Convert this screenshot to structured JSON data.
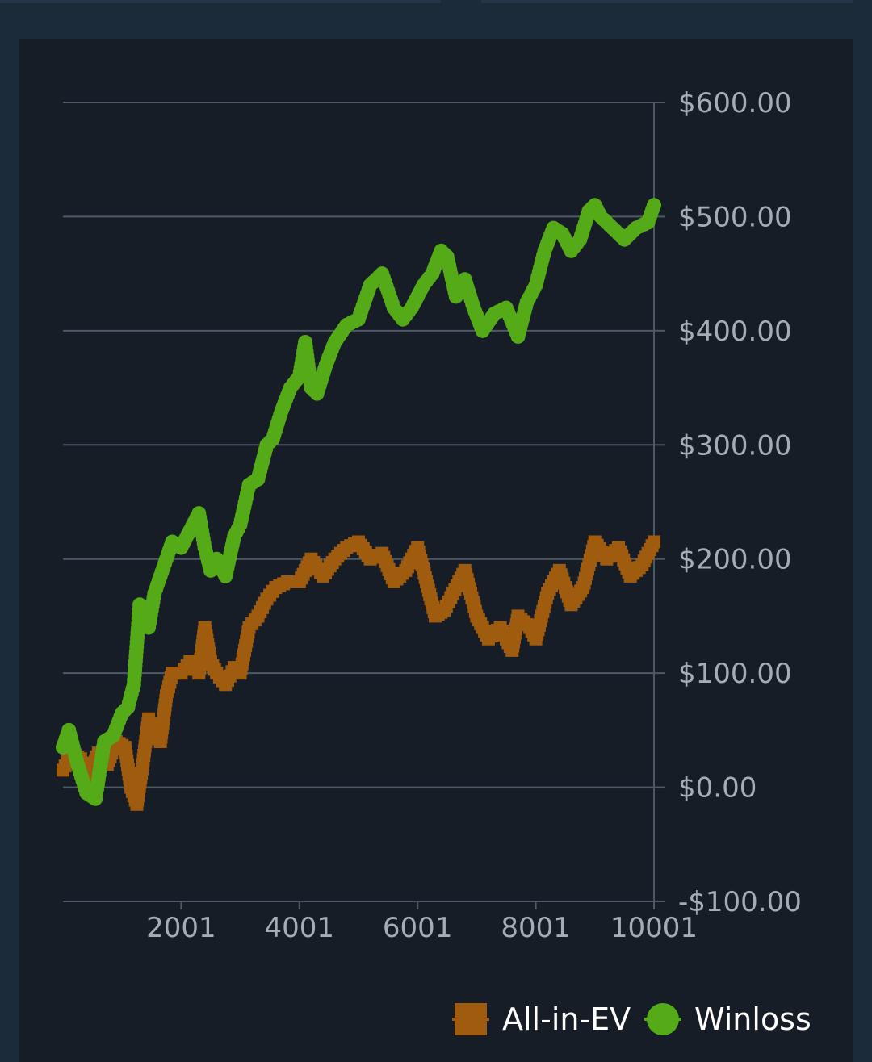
{
  "chart_data": {
    "type": "line",
    "title": "",
    "xlabel": "",
    "ylabel": "",
    "xlim": [
      1,
      10001
    ],
    "ylim": [
      -100,
      600
    ],
    "x_ticks": [
      2001,
      4001,
      6001,
      8001,
      10001
    ],
    "x_tick_labels": [
      "2001",
      "4001",
      "6001",
      "8001",
      "10001"
    ],
    "y_ticks": [
      600,
      500,
      400,
      300,
      200,
      100,
      0,
      -100
    ],
    "y_tick_labels": [
      "$600.00",
      "$500.00",
      "$400.00",
      "$300.00",
      "$200.00",
      "$100.00",
      "$0.00",
      "-$100.00"
    ],
    "grid": true,
    "y_axis_side": "right",
    "legend_position": "bottom-right",
    "series": [
      {
        "name": "All-in-EV",
        "color": "#a05c0e",
        "marker": "square",
        "x": [
          1,
          150,
          300,
          450,
          600,
          750,
          900,
          1050,
          1150,
          1250,
          1350,
          1450,
          1550,
          1650,
          1750,
          1850,
          2001,
          2150,
          2300,
          2400,
          2500,
          2600,
          2750,
          2900,
          3000,
          3150,
          3300,
          3450,
          3600,
          3800,
          4001,
          4200,
          4400,
          4600,
          4800,
          5000,
          5200,
          5400,
          5600,
          5800,
          6001,
          6150,
          6300,
          6450,
          6600,
          6800,
          7000,
          7200,
          7400,
          7600,
          7700,
          7900,
          8001,
          8200,
          8400,
          8600,
          8800,
          9000,
          9200,
          9400,
          9600,
          9800,
          10001
        ],
        "values": [
          15,
          30,
          25,
          10,
          30,
          20,
          40,
          35,
          0,
          -15,
          20,
          60,
          45,
          40,
          80,
          100,
          100,
          110,
          100,
          140,
          110,
          100,
          90,
          105,
          100,
          140,
          150,
          165,
          175,
          180,
          180,
          200,
          185,
          200,
          210,
          215,
          200,
          205,
          180,
          190,
          210,
          180,
          150,
          155,
          170,
          190,
          150,
          130,
          140,
          120,
          150,
          140,
          130,
          170,
          190,
          160,
          175,
          215,
          200,
          210,
          185,
          195,
          215
        ]
      },
      {
        "name": "Winloss",
        "color": "#55aa18",
        "marker": "circle",
        "x": [
          1,
          100,
          250,
          400,
          550,
          700,
          850,
          1000,
          1100,
          1200,
          1300,
          1400,
          1450,
          1550,
          1650,
          1750,
          1850,
          2001,
          2150,
          2300,
          2400,
          2500,
          2600,
          2750,
          2900,
          3000,
          3150,
          3300,
          3450,
          3550,
          3700,
          3850,
          4001,
          4100,
          4200,
          4300,
          4450,
          4600,
          4800,
          5000,
          5200,
          5400,
          5600,
          5750,
          5900,
          6001,
          6100,
          6250,
          6400,
          6500,
          6650,
          6800,
          6950,
          7100,
          7300,
          7500,
          7700,
          7850,
          8001,
          8150,
          8300,
          8450,
          8600,
          8750,
          8900,
          9000,
          9100,
          9300,
          9500,
          9700,
          9900,
          10001
        ],
        "values": [
          35,
          50,
          20,
          -5,
          -10,
          40,
          45,
          65,
          70,
          90,
          160,
          150,
          140,
          170,
          185,
          200,
          215,
          210,
          225,
          240,
          210,
          190,
          200,
          185,
          220,
          230,
          265,
          270,
          300,
          305,
          330,
          350,
          360,
          390,
          350,
          345,
          370,
          390,
          405,
          410,
          440,
          450,
          420,
          410,
          420,
          430,
          440,
          450,
          470,
          465,
          430,
          445,
          420,
          400,
          415,
          420,
          395,
          425,
          440,
          470,
          490,
          485,
          470,
          480,
          505,
          510,
          500,
          490,
          480,
          490,
          495,
          510
        ]
      }
    ]
  }
}
